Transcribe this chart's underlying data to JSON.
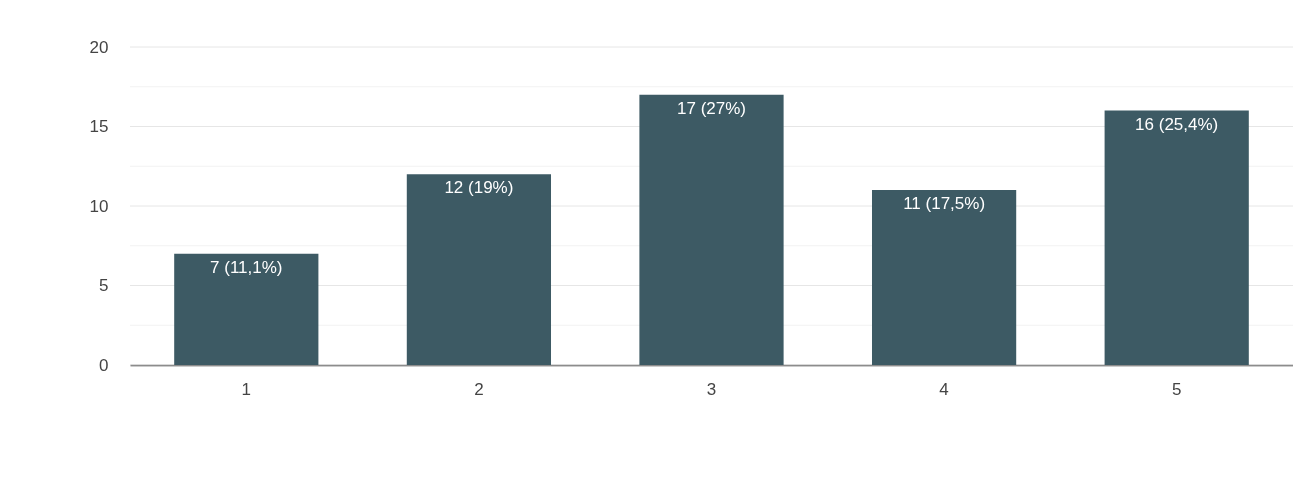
{
  "chart_data": {
    "type": "bar",
    "categories": [
      "1",
      "2",
      "3",
      "4",
      "5"
    ],
    "values": [
      7,
      12,
      17,
      11,
      16
    ],
    "value_labels": [
      "7 (11,1%)",
      "12 (19%)",
      "17 (27%)",
      "11 (17,5%)",
      "16 (25,4%)"
    ],
    "color": "#3d5a64",
    "ylim": [
      0,
      20
    ],
    "yticks": [
      0,
      {
        "value": 2.5,
        "label": null
      },
      5,
      {
        "value": 7.5,
        "label": null
      },
      10,
      {
        "value": 12.5,
        "label": null
      },
      15,
      {
        "value": 17.5,
        "label": null
      },
      20
    ],
    "grid": "y"
  }
}
